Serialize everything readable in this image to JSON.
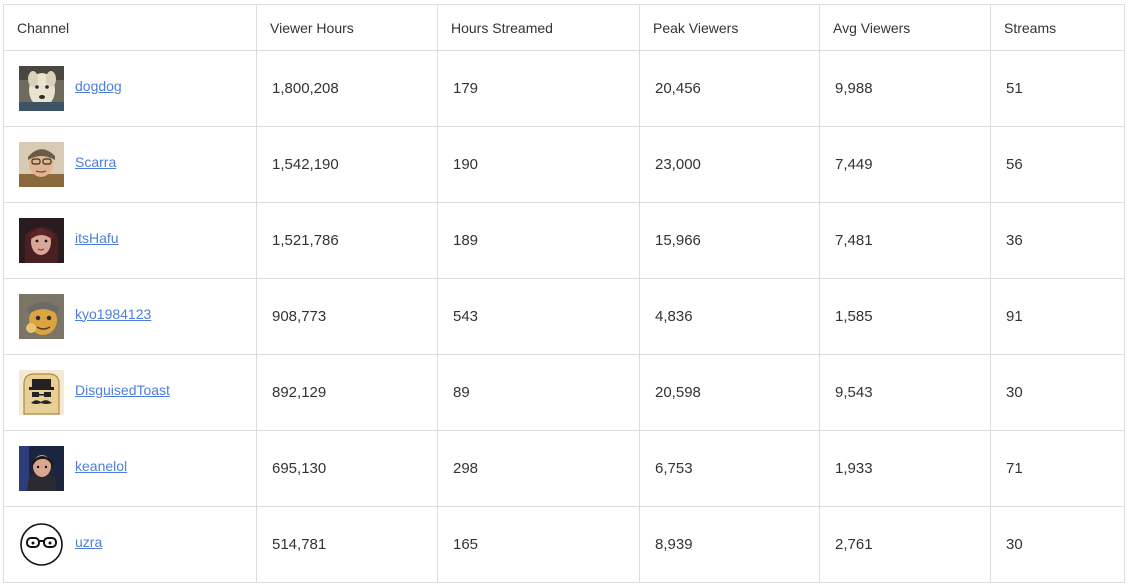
{
  "table": {
    "headers": [
      "Channel",
      "Viewer Hours",
      "Hours Streamed",
      "Peak Viewers",
      "Avg Viewers",
      "Streams"
    ],
    "rows": [
      {
        "channel": "dogdog",
        "avatar": "dog-avatar-icon",
        "viewer_hours": "1,800,208",
        "hours_streamed": "179",
        "peak_viewers": "20,456",
        "avg_viewers": "9,988",
        "streams": "51"
      },
      {
        "channel": "Scarra",
        "avatar": "person-avatar-icon",
        "viewer_hours": "1,542,190",
        "hours_streamed": "190",
        "peak_viewers": "23,000",
        "avg_viewers": "7,449",
        "streams": "56"
      },
      {
        "channel": "itsHafu",
        "avatar": "person-avatar-icon",
        "viewer_hours": "1,521,786",
        "hours_streamed": "189",
        "peak_viewers": "15,966",
        "avg_viewers": "7,481",
        "streams": "36"
      },
      {
        "channel": "kyo1984123",
        "avatar": "cartoon-avatar-icon",
        "viewer_hours": "908,773",
        "hours_streamed": "543",
        "peak_viewers": "4,836",
        "avg_viewers": "1,585",
        "streams": "91"
      },
      {
        "channel": "DisguisedToast",
        "avatar": "toast-avatar-icon",
        "viewer_hours": "892,129",
        "hours_streamed": "89",
        "peak_viewers": "20,598",
        "avg_viewers": "9,543",
        "streams": "30"
      },
      {
        "channel": "keanelol",
        "avatar": "person-avatar-icon",
        "viewer_hours": "695,130",
        "hours_streamed": "298",
        "peak_viewers": "6,753",
        "avg_viewers": "1,933",
        "streams": "71"
      },
      {
        "channel": "uzra",
        "avatar": "glasses-face-avatar-icon",
        "viewer_hours": "514,781",
        "hours_streamed": "165",
        "peak_viewers": "8,939",
        "avg_viewers": "2,761",
        "streams": "30"
      }
    ]
  },
  "colors": {
    "link": "#4d7ed9",
    "border": "#dcdde3",
    "text": "#333333"
  }
}
